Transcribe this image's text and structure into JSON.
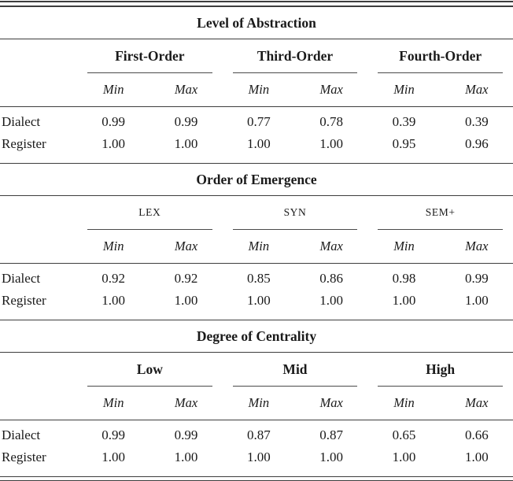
{
  "table": {
    "sections": [
      {
        "title": "Level of Abstraction",
        "min_label": "Min",
        "max_label": "Max",
        "groups": [
          {
            "label": "First-Order"
          },
          {
            "label": "Third-Order"
          },
          {
            "label": "Fourth-Order"
          }
        ],
        "rows": [
          {
            "label": "Dialect",
            "values": [
              "0.99",
              "0.99",
              "0.77",
              "0.78",
              "0.39",
              "0.39"
            ]
          },
          {
            "label": "Register",
            "values": [
              "1.00",
              "1.00",
              "1.00",
              "1.00",
              "0.95",
              "0.96"
            ]
          }
        ]
      },
      {
        "title": "Order of Emergence",
        "min_label": "Min",
        "max_label": "Max",
        "groups": [
          {
            "label": "LEX"
          },
          {
            "label": "SYN"
          },
          {
            "label": "SEM+"
          }
        ],
        "rows": [
          {
            "label": "Dialect",
            "values": [
              "0.92",
              "0.92",
              "0.85",
              "0.86",
              "0.98",
              "0.99"
            ]
          },
          {
            "label": "Register",
            "values": [
              "1.00",
              "1.00",
              "1.00",
              "1.00",
              "1.00",
              "1.00"
            ]
          }
        ]
      },
      {
        "title": "Degree of Centrality",
        "min_label": "Min",
        "max_label": "Max",
        "groups": [
          {
            "label": "Low"
          },
          {
            "label": "Mid"
          },
          {
            "label": "High"
          }
        ],
        "rows": [
          {
            "label": "Dialect",
            "values": [
              "0.99",
              "0.99",
              "0.87",
              "0.87",
              "0.65",
              "0.66"
            ]
          },
          {
            "label": "Register",
            "values": [
              "1.00",
              "1.00",
              "1.00",
              "1.00",
              "1.00",
              "1.00"
            ]
          }
        ]
      }
    ]
  }
}
